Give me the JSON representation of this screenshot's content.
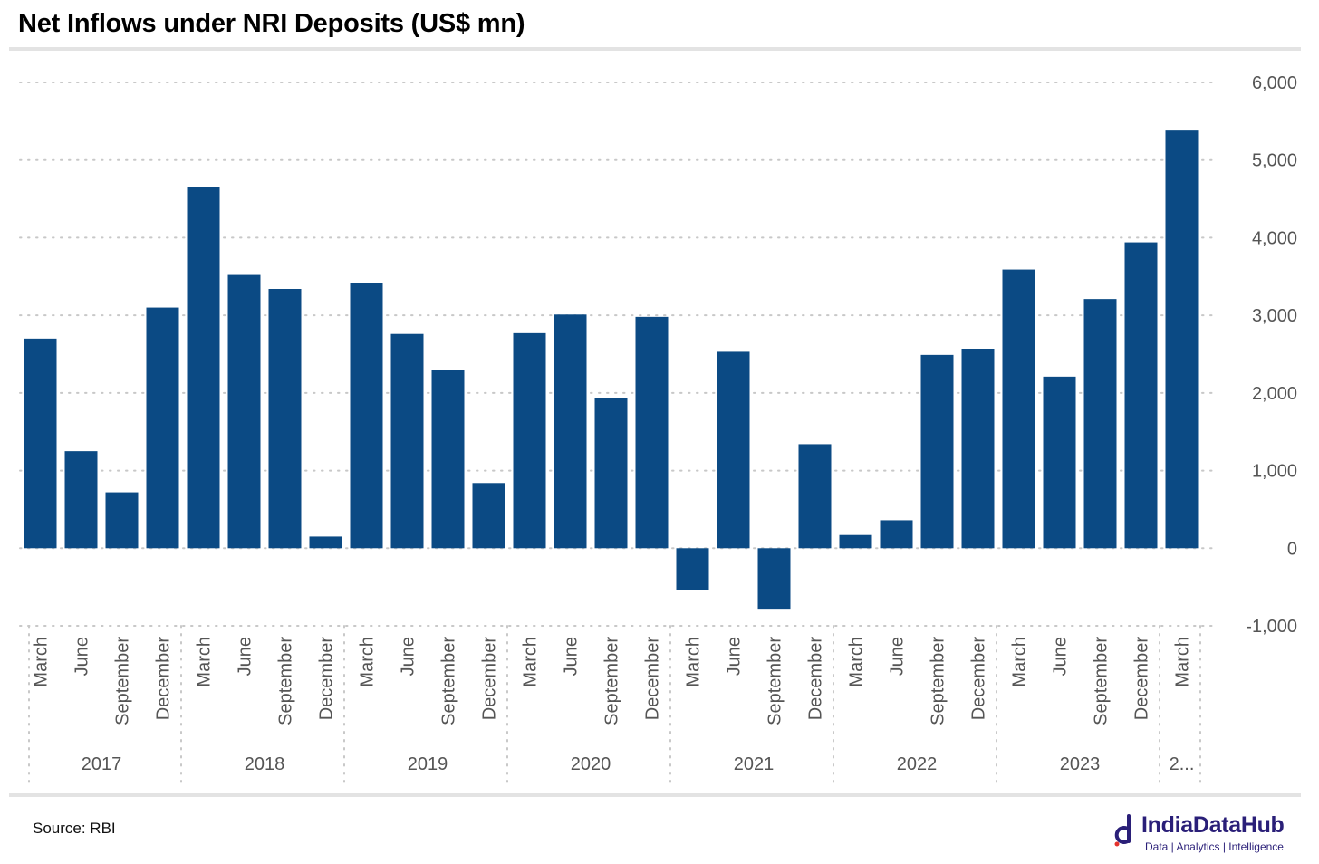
{
  "header": {
    "title": "Net Inflows under NRI Deposits (US$ mn)"
  },
  "footer": {
    "source": "Source: RBI",
    "brand_name": "IndiaDataHub",
    "brand_tagline": "Data | Analytics | Intelligence"
  },
  "colors": {
    "bar": "#0b4a84",
    "grid": "#c8c8c8",
    "axis_text": "#555555",
    "rule": "#e3e3e3",
    "brand": "#2a1f78"
  },
  "chart_data": {
    "type": "bar",
    "title": "Net Inflows under NRI Deposits (US$ mn)",
    "xlabel": "",
    "ylabel": "",
    "ylim": [
      -1000,
      6000
    ],
    "yticks": [
      6000,
      5000,
      4000,
      3000,
      2000,
      1000,
      0,
      -1000
    ],
    "ytick_labels": [
      "6,000",
      "5,000",
      "4,000",
      "3,000",
      "2,000",
      "1,000",
      "0",
      "-1,000"
    ],
    "y_axis_position": "right",
    "grid": true,
    "legend": "none",
    "categories": [
      "March",
      "June",
      "September",
      "December",
      "March",
      "June",
      "September",
      "December",
      "March",
      "June",
      "September",
      "December",
      "March",
      "June",
      "September",
      "December",
      "March",
      "June",
      "September",
      "December",
      "March",
      "June",
      "September",
      "December",
      "March",
      "June",
      "September",
      "December",
      "March"
    ],
    "year_groups": [
      {
        "label": "2017",
        "count": 4
      },
      {
        "label": "2018",
        "count": 4
      },
      {
        "label": "2019",
        "count": 4
      },
      {
        "label": "2020",
        "count": 4
      },
      {
        "label": "2021",
        "count": 4
      },
      {
        "label": "2022",
        "count": 4
      },
      {
        "label": "2023",
        "count": 4
      },
      {
        "label": "2...",
        "count": 1
      }
    ],
    "series": [
      {
        "values": [
          2700,
          1250,
          720,
          3100,
          4650,
          3520,
          3340,
          150,
          3420,
          2760,
          2290,
          840,
          2770,
          3010,
          1940,
          2980,
          -540,
          2530,
          -780,
          1340,
          170,
          360,
          2490,
          2570,
          3590,
          2210,
          3210,
          3940,
          5380
        ]
      }
    ]
  }
}
